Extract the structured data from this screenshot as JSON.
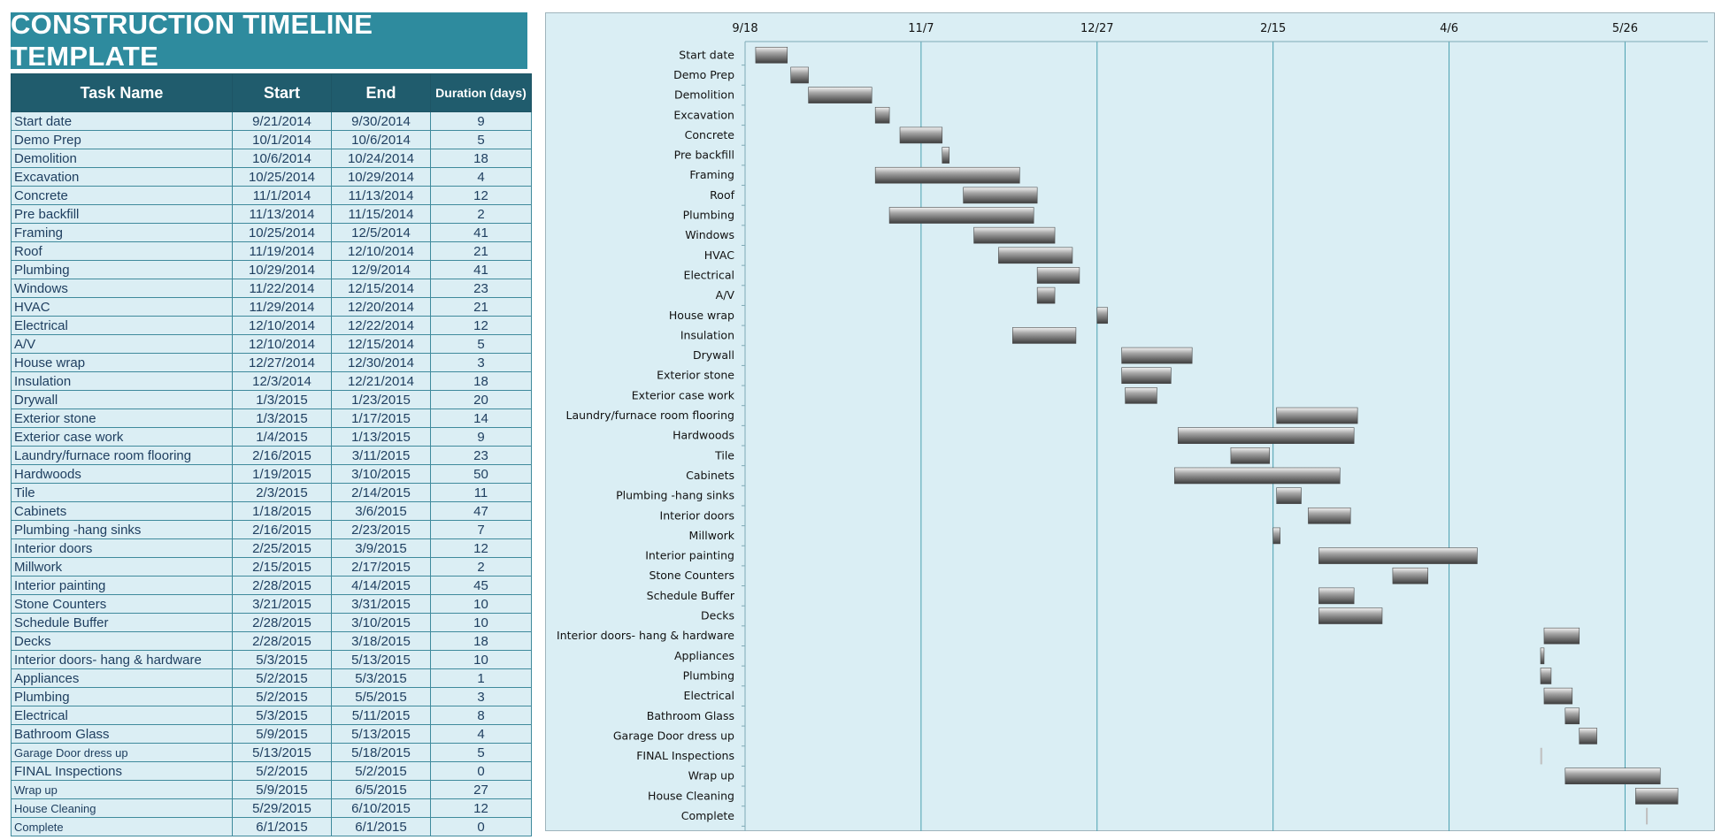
{
  "title": "CONSTRUCTION TIMELINE TEMPLATE",
  "table": {
    "headers": {
      "task": "Task Name",
      "start": "Start",
      "end": "End",
      "duration": "Duration (days)"
    },
    "rows": [
      {
        "task": "Start date",
        "start": "9/21/2014",
        "end": "9/30/2014",
        "duration": "9"
      },
      {
        "task": "Demo Prep",
        "start": "10/1/2014",
        "end": "10/6/2014",
        "duration": "5"
      },
      {
        "task": "Demolition",
        "start": "10/6/2014",
        "end": "10/24/2014",
        "duration": "18"
      },
      {
        "task": "Excavation",
        "start": "10/25/2014",
        "end": "10/29/2014",
        "duration": "4"
      },
      {
        "task": "Concrete",
        "start": "11/1/2014",
        "end": "11/13/2014",
        "duration": "12"
      },
      {
        "task": "Pre backfill",
        "start": "11/13/2014",
        "end": "11/15/2014",
        "duration": "2"
      },
      {
        "task": "Framing",
        "start": "10/25/2014",
        "end": "12/5/2014",
        "duration": "41"
      },
      {
        "task": "Roof",
        "start": "11/19/2014",
        "end": "12/10/2014",
        "duration": "21"
      },
      {
        "task": "Plumbing",
        "start": "10/29/2014",
        "end": "12/9/2014",
        "duration": "41"
      },
      {
        "task": "Windows",
        "start": "11/22/2014",
        "end": "12/15/2014",
        "duration": "23"
      },
      {
        "task": "HVAC",
        "start": "11/29/2014",
        "end": "12/20/2014",
        "duration": "21"
      },
      {
        "task": "Electrical",
        "start": "12/10/2014",
        "end": "12/22/2014",
        "duration": "12"
      },
      {
        "task": "A/V",
        "start": "12/10/2014",
        "end": "12/15/2014",
        "duration": "5"
      },
      {
        "task": "House wrap",
        "start": "12/27/2014",
        "end": "12/30/2014",
        "duration": "3"
      },
      {
        "task": "Insulation",
        "start": "12/3/2014",
        "end": "12/21/2014",
        "duration": "18"
      },
      {
        "task": "Drywall",
        "start": "1/3/2015",
        "end": "1/23/2015",
        "duration": "20"
      },
      {
        "task": "Exterior stone",
        "start": "1/3/2015",
        "end": "1/17/2015",
        "duration": "14"
      },
      {
        "task": "Exterior case work",
        "start": "1/4/2015",
        "end": "1/13/2015",
        "duration": "9"
      },
      {
        "task": "Laundry/furnace room flooring",
        "start": "2/16/2015",
        "end": "3/11/2015",
        "duration": "23"
      },
      {
        "task": "Hardwoods",
        "start": "1/19/2015",
        "end": "3/10/2015",
        "duration": "50"
      },
      {
        "task": "Tile",
        "start": "2/3/2015",
        "end": "2/14/2015",
        "duration": "11"
      },
      {
        "task": "Cabinets",
        "start": "1/18/2015",
        "end": "3/6/2015",
        "duration": "47"
      },
      {
        "task": "Plumbing -hang sinks",
        "start": "2/16/2015",
        "end": "2/23/2015",
        "duration": "7"
      },
      {
        "task": "Interior doors",
        "start": "2/25/2015",
        "end": "3/9/2015",
        "duration": "12"
      },
      {
        "task": "Millwork",
        "start": "2/15/2015",
        "end": "2/17/2015",
        "duration": "2"
      },
      {
        "task": "Interior painting",
        "start": "2/28/2015",
        "end": "4/14/2015",
        "duration": "45"
      },
      {
        "task": "Stone Counters",
        "start": "3/21/2015",
        "end": "3/31/2015",
        "duration": "10"
      },
      {
        "task": "Schedule Buffer",
        "start": "2/28/2015",
        "end": "3/10/2015",
        "duration": "10"
      },
      {
        "task": "Decks",
        "start": "2/28/2015",
        "end": "3/18/2015",
        "duration": "18"
      },
      {
        "task": "Interior doors- hang & hardware",
        "start": "5/3/2015",
        "end": "5/13/2015",
        "duration": "10"
      },
      {
        "task": "Appliances",
        "start": "5/2/2015",
        "end": "5/3/2015",
        "duration": "1"
      },
      {
        "task": "Plumbing",
        "start": "5/2/2015",
        "end": "5/5/2015",
        "duration": "3"
      },
      {
        "task": "Electrical",
        "start": "5/3/2015",
        "end": "5/11/2015",
        "duration": "8"
      },
      {
        "task": "Bathroom Glass",
        "start": "5/9/2015",
        "end": "5/13/2015",
        "duration": "4"
      },
      {
        "task": "Garage Door dress up",
        "start": "5/13/2015",
        "end": "5/18/2015",
        "duration": "5"
      },
      {
        "task": "FINAL Inspections",
        "start": "5/2/2015",
        "end": "5/2/2015",
        "duration": "0"
      },
      {
        "task": "Wrap up",
        "start": "5/9/2015",
        "end": "6/5/2015",
        "duration": "27"
      },
      {
        "task": "House Cleaning",
        "start": "5/29/2015",
        "end": "6/10/2015",
        "duration": "12"
      },
      {
        "task": "Complete",
        "start": "6/1/2015",
        "end": "6/1/2015",
        "duration": "0"
      }
    ]
  },
  "chart_data": {
    "type": "bar",
    "orientation": "horizontal-gantt",
    "x_ticks": [
      "9/18",
      "11/7",
      "12/27",
      "2/15",
      "4/6",
      "5/26"
    ],
    "xlim": [
      "9/18/2014",
      "6/15/2015"
    ],
    "grid": "vertical",
    "legend": "none",
    "categories": [
      "Start date",
      "Demo Prep",
      "Demolition",
      "Excavation",
      "Concrete",
      "Pre backfill",
      "Framing",
      "Roof",
      "Plumbing",
      "Windows",
      "HVAC",
      "Electrical",
      "A/V",
      "House wrap",
      "Insulation",
      "Drywall",
      "Exterior stone",
      "Exterior case work",
      "Laundry/furnace room flooring",
      "Hardwoods",
      "Tile",
      "Cabinets",
      "Plumbing -hang sinks",
      "Interior doors",
      "Millwork",
      "Interior painting",
      "Stone Counters",
      "Schedule Buffer",
      "Decks",
      "Interior doors- hang & hardware",
      "Appliances",
      "Plumbing",
      "Electrical",
      "Bathroom Glass",
      "Garage Door dress up",
      "FINAL Inspections",
      "Wrap up",
      "House Cleaning",
      "Complete"
    ],
    "start": [
      "9/21/2014",
      "10/1/2014",
      "10/6/2014",
      "10/25/2014",
      "11/1/2014",
      "11/13/2014",
      "10/25/2014",
      "11/19/2014",
      "10/29/2014",
      "11/22/2014",
      "11/29/2014",
      "12/10/2014",
      "12/10/2014",
      "12/27/2014",
      "12/3/2014",
      "1/3/2015",
      "1/3/2015",
      "1/4/2015",
      "2/16/2015",
      "1/19/2015",
      "2/3/2015",
      "1/18/2015",
      "2/16/2015",
      "2/25/2015",
      "2/15/2015",
      "2/28/2015",
      "3/21/2015",
      "2/28/2015",
      "2/28/2015",
      "5/3/2015",
      "5/2/2015",
      "5/2/2015",
      "5/3/2015",
      "5/9/2015",
      "5/13/2015",
      "5/2/2015",
      "5/9/2015",
      "5/29/2015",
      "6/1/2015"
    ],
    "duration_days": [
      9,
      5,
      18,
      4,
      12,
      2,
      41,
      21,
      41,
      23,
      21,
      12,
      5,
      3,
      18,
      20,
      14,
      9,
      23,
      50,
      11,
      47,
      7,
      12,
      2,
      45,
      10,
      10,
      18,
      10,
      1,
      3,
      8,
      4,
      5,
      0,
      27,
      12,
      0
    ],
    "colors": {
      "background": "#daeef4",
      "bar": "#8a8a8a",
      "grid": "#4aa0b0",
      "axis": "#7faab6"
    }
  }
}
